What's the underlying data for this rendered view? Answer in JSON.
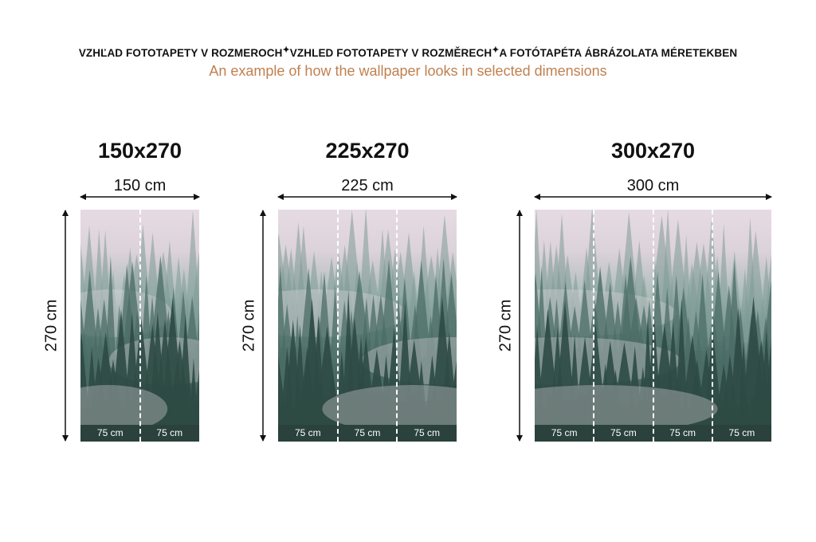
{
  "header": {
    "languages": [
      "VZHĽAD FOTOTAPETY V ROZMEROCH",
      "VZHLED FOTOTAPETY V ROZMĚRECH",
      "A FOTÓTAPÉTA ÁBRÁZOLATA MÉRETEKBEN"
    ],
    "separator_icon": "sparkle-icon",
    "subtitle": "An example of how the wallpaper looks in selected dimensions"
  },
  "colors": {
    "subtitle": "#c08050",
    "text": "#111111"
  },
  "variants": [
    {
      "title": "150x270",
      "width_label": "150 cm",
      "height_label": "270 cm",
      "segments": [
        "75 cm",
        "75 cm"
      ]
    },
    {
      "title": "225x270",
      "width_label": "225 cm",
      "height_label": "270 cm",
      "segments": [
        "75 cm",
        "75 cm",
        "75 cm"
      ]
    },
    {
      "title": "300x270",
      "width_label": "300 cm",
      "height_label": "270 cm",
      "segments": [
        "75 cm",
        "75 cm",
        "75 cm",
        "75 cm"
      ]
    }
  ]
}
